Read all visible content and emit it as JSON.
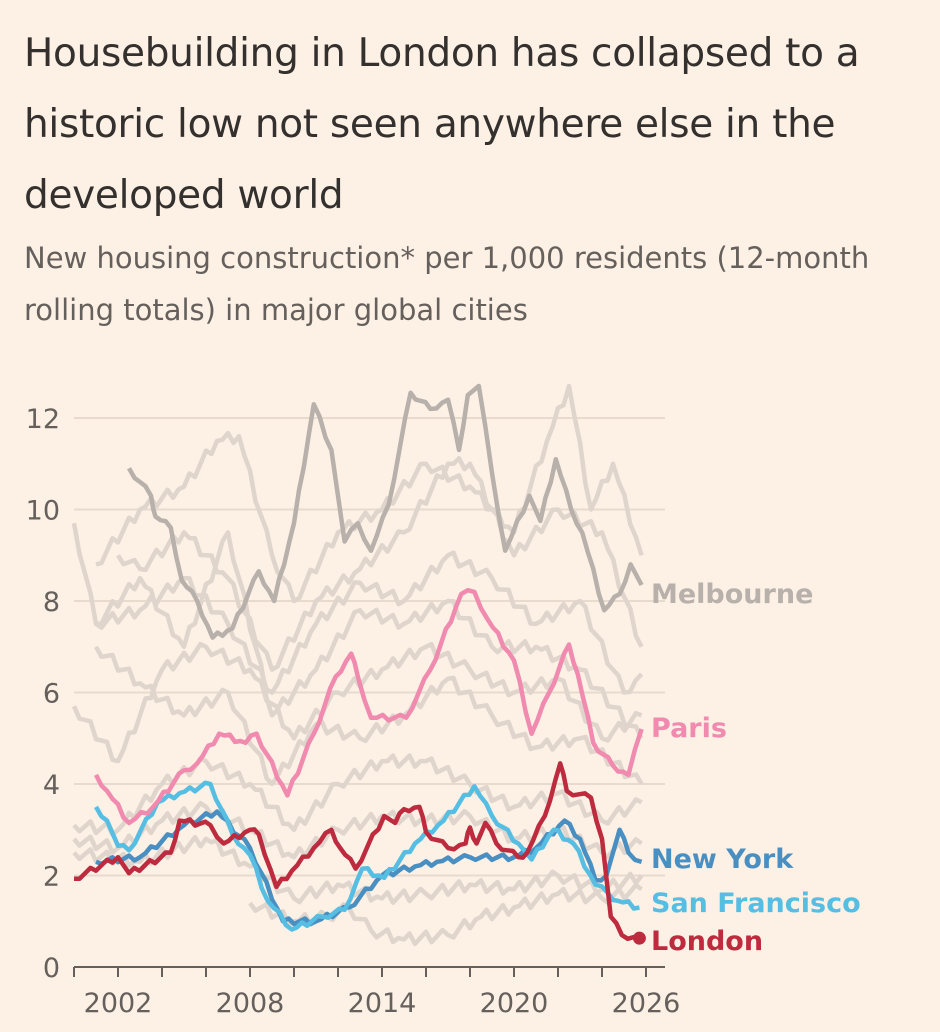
{
  "chart_data": {
    "type": "line",
    "title": "Housebuilding in London has collapsed to a historic low not seen anywhere else in the developed world",
    "subtitle": "New housing construction* per 1,000 residents (12-month rolling totals) in major global cities",
    "xlabel": "",
    "ylabel": "",
    "xlim": [
      2000,
      2026.5
    ],
    "ylim": [
      0,
      13
    ],
    "grid": true,
    "y_ticks": [
      "0",
      "2",
      "4",
      "6",
      "8",
      "10",
      "12"
    ],
    "x_ticks": [
      "2002",
      "2008",
      "2014",
      "2020",
      "2026"
    ],
    "colors": {
      "background_series": "#e0d5cc",
      "Melbourne": "#b8b0aa",
      "Paris": "#f08aae",
      "New York": "#4a8fc2",
      "San Francisco": "#56bde3",
      "London": "#be2a3e"
    },
    "background_series": [
      [
        [
          2001,
          8.8
        ],
        [
          2003,
          10
        ],
        [
          2005,
          10.5
        ],
        [
          2006.5,
          11.5
        ],
        [
          2007.5,
          11.6
        ],
        [
          2009,
          9
        ],
        [
          2010,
          8
        ],
        [
          2012,
          9.5
        ],
        [
          2014,
          10
        ],
        [
          2016,
          11
        ],
        [
          2018,
          10.5
        ],
        [
          2020,
          9.5
        ],
        [
          2021.5,
          11.5
        ],
        [
          2022.5,
          12.7
        ],
        [
          2023.5,
          10
        ],
        [
          2024.5,
          11
        ],
        [
          2025.8,
          9
        ]
      ],
      [
        [
          2000,
          9.7
        ],
        [
          2001,
          7.5
        ],
        [
          2003,
          7.8
        ],
        [
          2005,
          8.5
        ],
        [
          2007,
          7.5
        ],
        [
          2009,
          6
        ],
        [
          2011,
          7.5
        ],
        [
          2013,
          8.4
        ],
        [
          2015,
          8
        ],
        [
          2017,
          9
        ],
        [
          2019,
          8.5
        ],
        [
          2021,
          7.5
        ],
        [
          2023,
          8
        ],
        [
          2025,
          6
        ],
        [
          2025.8,
          6.4
        ]
      ],
      [
        [
          2000,
          5.7
        ],
        [
          2002,
          4.5
        ],
        [
          2004,
          6.5
        ],
        [
          2006,
          7
        ],
        [
          2008,
          6.5
        ],
        [
          2010,
          5
        ],
        [
          2012,
          6
        ],
        [
          2014,
          6.5
        ],
        [
          2016,
          7
        ],
        [
          2018,
          6.5
        ],
        [
          2020,
          6
        ],
        [
          2022,
          6.3
        ],
        [
          2024,
          5
        ],
        [
          2025.8,
          5.5
        ]
      ],
      [
        [
          2001,
          7
        ],
        [
          2003,
          6.2
        ],
        [
          2005,
          5.5
        ],
        [
          2007,
          6
        ],
        [
          2009,
          4
        ],
        [
          2011,
          5.3
        ],
        [
          2013,
          5
        ],
        [
          2015,
          5.5
        ],
        [
          2017,
          6.3
        ],
        [
          2019,
          5.5
        ],
        [
          2021,
          4.8
        ],
        [
          2023,
          5
        ],
        [
          2025.8,
          4
        ]
      ],
      [
        [
          2000,
          3.1
        ],
        [
          2002,
          3
        ],
        [
          2004,
          4
        ],
        [
          2006,
          4.5
        ],
        [
          2008,
          4
        ],
        [
          2010,
          3
        ],
        [
          2012,
          4
        ],
        [
          2014,
          4.5
        ],
        [
          2016,
          4.5
        ],
        [
          2018,
          4
        ],
        [
          2020,
          3.5
        ],
        [
          2022,
          3.8
        ],
        [
          2024,
          3.2
        ],
        [
          2025.8,
          3.6
        ]
      ],
      [
        [
          2000,
          2.8
        ],
        [
          2002,
          2.6
        ],
        [
          2004,
          3.2
        ],
        [
          2006,
          3.5
        ],
        [
          2008,
          3
        ],
        [
          2010,
          2.4
        ],
        [
          2012,
          3
        ],
        [
          2014,
          3.3
        ],
        [
          2016,
          3.2
        ],
        [
          2018,
          3.3
        ],
        [
          2020,
          2.8
        ],
        [
          2022,
          3
        ],
        [
          2024,
          2.5
        ],
        [
          2025.8,
          2.7
        ]
      ],
      [
        [
          2008,
          1.4
        ],
        [
          2010,
          1
        ],
        [
          2011.5,
          1.1
        ],
        [
          2012.5,
          1.3
        ],
        [
          2013.5,
          0.8
        ],
        [
          2015,
          0.6
        ],
        [
          2017,
          0.7
        ],
        [
          2018.5,
          1.1
        ],
        [
          2020,
          1.3
        ],
        [
          2022,
          1.6
        ],
        [
          2024,
          1.5
        ],
        [
          2025.8,
          1.7
        ]
      ],
      [
        [
          2000,
          2.5
        ],
        [
          2003,
          2.3
        ],
        [
          2006,
          2.8
        ],
        [
          2008,
          2.2
        ],
        [
          2010,
          1.5
        ],
        [
          2012,
          1.8
        ],
        [
          2014,
          1.5
        ],
        [
          2016,
          1.6
        ],
        [
          2018,
          1.8
        ],
        [
          2020,
          1.7
        ],
        [
          2022,
          2
        ],
        [
          2024,
          1.7
        ],
        [
          2025.8,
          2
        ]
      ],
      [
        [
          2002,
          9
        ],
        [
          2003,
          8.7
        ],
        [
          2005,
          9.5
        ],
        [
          2007,
          8.5
        ],
        [
          2009,
          6.5
        ],
        [
          2011,
          8
        ],
        [
          2013,
          8.7
        ],
        [
          2015,
          9.5
        ],
        [
          2017,
          11
        ],
        [
          2018,
          11
        ],
        [
          2020,
          9
        ],
        [
          2022,
          10
        ],
        [
          2024,
          9.5
        ],
        [
          2025.8,
          7
        ]
      ],
      [
        [
          2001,
          7.5
        ],
        [
          2003,
          8.5
        ],
        [
          2005,
          7
        ],
        [
          2007,
          9.5
        ],
        [
          2009,
          5.5
        ],
        [
          2011,
          6.5
        ],
        [
          2013,
          7.8
        ],
        [
          2015,
          7.5
        ],
        [
          2017,
          8
        ],
        [
          2019,
          7
        ],
        [
          2021,
          7
        ],
        [
          2023,
          6.5
        ],
        [
          2025.8,
          5
        ]
      ]
    ],
    "series": [
      {
        "name": "Melbourne",
        "values": [
          [
            2002.5,
            10.9
          ],
          [
            2003.5,
            10.3
          ],
          [
            2003.7,
            9.85
          ],
          [
            2004.4,
            9.6
          ],
          [
            2004.9,
            8.45
          ],
          [
            2005.6,
            8
          ],
          [
            2006.3,
            7.2
          ],
          [
            2007.2,
            7.4
          ],
          [
            2008.4,
            8.65
          ],
          [
            2009.1,
            8
          ],
          [
            2010,
            9.7
          ],
          [
            2010.9,
            12.3
          ],
          [
            2011.7,
            11.3
          ],
          [
            2012.3,
            9.3
          ],
          [
            2012.9,
            9.7
          ],
          [
            2013.5,
            9.1
          ],
          [
            2014.3,
            10.1
          ],
          [
            2015.3,
            12.55
          ],
          [
            2016.2,
            12.2
          ],
          [
            2017,
            12.4
          ],
          [
            2017.5,
            11.3
          ],
          [
            2017.9,
            12.5
          ],
          [
            2018.4,
            12.7
          ],
          [
            2019,
            10.8
          ],
          [
            2019.6,
            9.1
          ],
          [
            2020.7,
            10.3
          ],
          [
            2021.2,
            9.75
          ],
          [
            2021.9,
            11.1
          ],
          [
            2022.6,
            10
          ],
          [
            2023.1,
            9.5
          ],
          [
            2024.1,
            7.8
          ],
          [
            2024.8,
            8.15
          ],
          [
            2025.3,
            8.8
          ],
          [
            2025.8,
            8.35
          ]
        ]
      },
      {
        "name": "Paris",
        "values": [
          [
            2001,
            4.2
          ],
          [
            2001.5,
            3.85
          ],
          [
            2002.5,
            3.15
          ],
          [
            2003.6,
            3.5
          ],
          [
            2005,
            4.3
          ],
          [
            2005.6,
            4.45
          ],
          [
            2006.6,
            5.1
          ],
          [
            2007.8,
            4.9
          ],
          [
            2008.3,
            5.1
          ],
          [
            2009.7,
            3.75
          ],
          [
            2010.9,
            5.1
          ],
          [
            2011.9,
            6.35
          ],
          [
            2012.6,
            6.85
          ],
          [
            2012.9,
            6.35
          ],
          [
            2013.5,
            5.45
          ],
          [
            2015.1,
            5.45
          ],
          [
            2016.2,
            6.5
          ],
          [
            2017.6,
            8.15
          ],
          [
            2018.2,
            8.2
          ],
          [
            2018.8,
            7.6
          ],
          [
            2020,
            6.7
          ],
          [
            2020.8,
            5.1
          ],
          [
            2021.6,
            6
          ],
          [
            2022.5,
            7.05
          ],
          [
            2022.9,
            6.4
          ],
          [
            2023.6,
            4.9
          ],
          [
            2024.5,
            4.4
          ],
          [
            2025.2,
            4.2
          ],
          [
            2025.8,
            5.2
          ]
        ]
      },
      {
        "name": "New York",
        "values": [
          [
            2001,
            2.3
          ],
          [
            2003,
            2.4
          ],
          [
            2005,
            3.1
          ],
          [
            2006.5,
            3.4
          ],
          [
            2008,
            2.6
          ],
          [
            2009.5,
            1
          ],
          [
            2011,
            1
          ],
          [
            2012.5,
            1.3
          ],
          [
            2014,
            2
          ],
          [
            2015.5,
            2.2
          ],
          [
            2016.5,
            2.3
          ],
          [
            2018,
            2.4
          ],
          [
            2020,
            2.4
          ],
          [
            2021,
            2.6
          ],
          [
            2022.3,
            3.2
          ],
          [
            2023,
            2.8
          ],
          [
            2023.7,
            1.9
          ],
          [
            2024.2,
            2
          ],
          [
            2024.8,
            3
          ],
          [
            2025.2,
            2.5
          ],
          [
            2025.8,
            2.3
          ]
        ]
      },
      {
        "name": "San Francisco",
        "values": [
          [
            2001,
            3.5
          ],
          [
            2001.5,
            3.2
          ],
          [
            2002,
            2.65
          ],
          [
            2002.5,
            2.55
          ],
          [
            2003.8,
            3.6
          ],
          [
            2004.8,
            3.8
          ],
          [
            2006.2,
            4
          ],
          [
            2007.2,
            2.9
          ],
          [
            2008,
            2.45
          ],
          [
            2008.8,
            1.45
          ],
          [
            2009.9,
            0.82
          ],
          [
            2011.3,
            1.1
          ],
          [
            2012.3,
            1.25
          ],
          [
            2013.1,
            2.15
          ],
          [
            2014.1,
            1.95
          ],
          [
            2015.5,
            2.7
          ],
          [
            2016.8,
            3.2
          ],
          [
            2018.2,
            3.95
          ],
          [
            2019,
            3.3
          ],
          [
            2020.2,
            2.7
          ],
          [
            2020.8,
            2.35
          ],
          [
            2021.8,
            3
          ],
          [
            2022.7,
            2.7
          ],
          [
            2023.7,
            1.8
          ],
          [
            2024.3,
            1.6
          ],
          [
            2024.7,
            1.45
          ],
          [
            2025.7,
            1.3
          ]
        ]
      },
      {
        "name": "London",
        "values": [
          [
            2000,
            1.93
          ],
          [
            2002,
            2.4
          ],
          [
            2002.5,
            2.05
          ],
          [
            2004.4,
            2.5
          ],
          [
            2004.8,
            3.2
          ],
          [
            2006.2,
            3.1
          ],
          [
            2006.8,
            2.7
          ],
          [
            2008,
            3
          ],
          [
            2008.4,
            2.9
          ],
          [
            2009.2,
            1.75
          ],
          [
            2009.9,
            2.1
          ],
          [
            2010.9,
            2.6
          ],
          [
            2011.7,
            3
          ],
          [
            2012.1,
            2.6
          ],
          [
            2012.8,
            2.15
          ],
          [
            2014.1,
            3.3
          ],
          [
            2014.6,
            3.15
          ],
          [
            2015,
            3.45
          ],
          [
            2015.7,
            3.5
          ],
          [
            2016,
            2.95
          ],
          [
            2017,
            2.6
          ],
          [
            2017.8,
            2.7
          ],
          [
            2018,
            3.05
          ],
          [
            2018.3,
            2.7
          ],
          [
            2018.7,
            3.15
          ],
          [
            2019.2,
            2.7
          ],
          [
            2020.2,
            2.4
          ],
          [
            2020.6,
            2.5
          ],
          [
            2021.4,
            3.3
          ],
          [
            2022.1,
            4.45
          ],
          [
            2022.4,
            3.85
          ],
          [
            2023.5,
            3.7
          ],
          [
            2024,
            2.8
          ],
          [
            2024.4,
            1.1
          ],
          [
            2024.9,
            0.7
          ],
          [
            2025.7,
            0.63
          ]
        ]
      }
    ],
    "series_labels": {
      "Melbourne": "Melbourne",
      "Paris": "Paris",
      "New York": "New York",
      "San Francisco": "San Francisco",
      "London": "London"
    }
  }
}
